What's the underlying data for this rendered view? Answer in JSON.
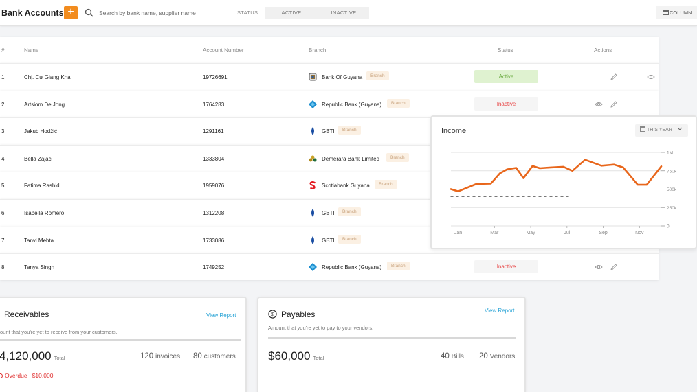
{
  "header": {
    "title": "Bank Accounts",
    "add_label": "+",
    "search_placeholder": "Search by bank name, supplier name",
    "status_label": "STATUS",
    "filter_active": "ACTIVE",
    "filter_inactive": "INACTIVE",
    "column_label": "COLUMN"
  },
  "table": {
    "headers": {
      "idx": "#",
      "name": "Name",
      "account": "Account Number",
      "branch": "Branch",
      "status": "Status",
      "actions": "Actions"
    },
    "rows": [
      {
        "idx": "1",
        "name": "Chị. Cự Giang Khai",
        "account": "19726691",
        "bank": "Bank Of Guyana",
        "tag": "Branch",
        "logo": "guyana-crest",
        "status": "Active",
        "actions": [
          "pencil-icon",
          "eye-icon"
        ]
      },
      {
        "idx": "2",
        "name": "Artsiom De Jong",
        "account": "1764283",
        "bank": "Republic Bank (Guyana)",
        "tag": "Branch",
        "logo": "republic-diamond",
        "status": "Inactive",
        "actions": [
          "eye-icon",
          "pencil-icon"
        ]
      },
      {
        "idx": "3",
        "name": "Jakub Hodžić",
        "account": "1291161",
        "bank": "GBTI",
        "tag": "Branch",
        "logo": "gbti-drop",
        "status": "",
        "actions": []
      },
      {
        "idx": "4",
        "name": "Bella Zajac",
        "account": "1333804",
        "bank": "Demerara Bank Limited",
        "tag": "Branch",
        "logo": "demerara-cluster",
        "status": "",
        "actions": []
      },
      {
        "idx": "5",
        "name": "Fatima Rashid",
        "account": "1959076",
        "bank": "Scotiabank Guyana",
        "tag": "Branch",
        "logo": "scotia-s",
        "status": "",
        "actions": []
      },
      {
        "idx": "6",
        "name": "Isabella Romero",
        "account": "1312208",
        "bank": "GBTI",
        "tag": "Branch",
        "logo": "gbti-drop",
        "status": "",
        "actions": []
      },
      {
        "idx": "7",
        "name": "Tanvi Mehta",
        "account": "1733086",
        "bank": "GBTI",
        "tag": "Branch",
        "logo": "gbti-drop",
        "status": "",
        "actions": []
      },
      {
        "idx": "8",
        "name": "Tanya Singh",
        "account": "1749252",
        "bank": "Republic Bank (Guyana)",
        "tag": "Branch",
        "logo": "republic-diamond",
        "status": "Inactive",
        "actions": [
          "eye-icon",
          "pencil-icon"
        ]
      }
    ]
  },
  "income": {
    "title": "Income",
    "period_label": "THIS YEAR"
  },
  "chart_data": {
    "type": "line",
    "title": "Income",
    "xlabel": "",
    "ylabel": "",
    "x_ticks": [
      "Jan",
      "Mar",
      "May",
      "Jul",
      "Sep",
      "Nov"
    ],
    "y_ticks": [
      "0",
      "250k",
      "500k",
      "750k",
      "1M"
    ],
    "ylim": [
      0,
      1000000
    ],
    "series": [
      {
        "style": "solid",
        "color": "#e8661b",
        "x": [
          0,
          0.4,
          1.4,
          2.2,
          2.7,
          3.1,
          3.6,
          4.0,
          4.5,
          4.9,
          5.5,
          6.2,
          6.7,
          7.4,
          8.3,
          9.0,
          9.5,
          10.3,
          10.8,
          11.6
        ],
        "values": [
          500000,
          470000,
          570000,
          575000,
          715000,
          770000,
          790000,
          650000,
          815000,
          785000,
          795000,
          805000,
          750000,
          900000,
          820000,
          835000,
          795000,
          560000,
          560000,
          810000
        ]
      },
      {
        "style": "dashed",
        "color": "#666666",
        "x": [
          0,
          6.6
        ],
        "values": [
          400000,
          400000
        ]
      }
    ],
    "grid": "horizontal",
    "legend": "none"
  },
  "receivables": {
    "title": "Receivables",
    "link": "View Report",
    "subtitle": "ount that you're yet to receive from your customers.",
    "amount": "4,120,000",
    "total_label": "Total",
    "invoices_num": "120",
    "invoices_label": "invoices",
    "customers_num": "80",
    "customers_label": "customers",
    "overdue_label": "Overdue",
    "overdue_amount": "$10,000"
  },
  "payables": {
    "title": "Payables",
    "link": "View Report",
    "subtitle": "Amount that you're yet to pay to your vendors.",
    "amount": "$60,000",
    "total_label": "Total",
    "bills_num": "40",
    "bills_label": "Bills",
    "vendors_num": "20",
    "vendors_label": "Vendors"
  },
  "colors": {
    "accent": "#f28c1e",
    "line": "#e8661b",
    "link": "#2aa4d6",
    "danger": "#e03030",
    "active_bg": "#dff2d0"
  }
}
